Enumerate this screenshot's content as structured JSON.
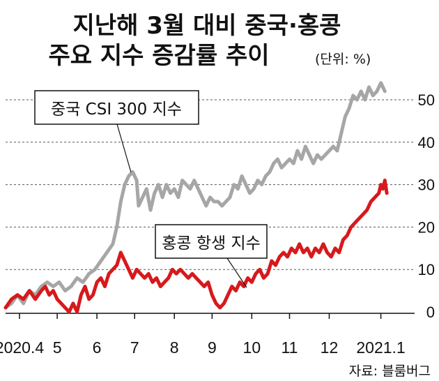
{
  "title_line1": "지난해 3월 대비 중국·홍콩",
  "title_line2": "주요 지수 증감률 추이",
  "unit": "(단위: %)",
  "source": "자료: 블룸버그",
  "colors": {
    "csi": "#a6a6a6",
    "hsi": "#d7191c",
    "grid": "#555555",
    "text": "#111111"
  },
  "chart_data": {
    "type": "line",
    "title": "지난해 3월 대비 중국·홍콩 주요 지수 증감률 추이",
    "ylabel": "(단위: %)",
    "ylim": [
      0,
      55
    ],
    "yticks": [
      0,
      10,
      20,
      30,
      40,
      50
    ],
    "xlim": [
      0,
      10.3
    ],
    "xticks": [
      {
        "x": 0.35,
        "label": "2020.4"
      },
      {
        "x": 1.3,
        "label": "5"
      },
      {
        "x": 2.3,
        "label": "6"
      },
      {
        "x": 3.25,
        "label": "7"
      },
      {
        "x": 4.25,
        "label": "8"
      },
      {
        "x": 5.2,
        "label": "9"
      },
      {
        "x": 6.2,
        "label": "10"
      },
      {
        "x": 7.15,
        "label": "11"
      },
      {
        "x": 8.15,
        "label": "12"
      },
      {
        "x": 9.45,
        "label": "2021.1"
      }
    ],
    "grid": "dashed horizontal",
    "series": [
      {
        "name": "중국 CSI 300 지수",
        "points": [
          [
            0.0,
            1
          ],
          [
            0.15,
            2
          ],
          [
            0.3,
            4
          ],
          [
            0.45,
            2
          ],
          [
            0.6,
            5
          ],
          [
            0.75,
            4
          ],
          [
            0.9,
            6
          ],
          [
            1.05,
            7
          ],
          [
            1.2,
            6
          ],
          [
            1.35,
            7
          ],
          [
            1.5,
            5
          ],
          [
            1.65,
            6
          ],
          [
            1.8,
            8
          ],
          [
            1.95,
            7
          ],
          [
            2.1,
            9
          ],
          [
            2.25,
            10
          ],
          [
            2.4,
            12
          ],
          [
            2.55,
            14
          ],
          [
            2.7,
            16
          ],
          [
            2.8,
            20
          ],
          [
            2.9,
            26
          ],
          [
            3.0,
            30
          ],
          [
            3.1,
            32
          ],
          [
            3.2,
            33
          ],
          [
            3.3,
            31
          ],
          [
            3.35,
            25
          ],
          [
            3.45,
            27
          ],
          [
            3.55,
            29
          ],
          [
            3.65,
            24
          ],
          [
            3.75,
            28
          ],
          [
            3.85,
            30
          ],
          [
            3.95,
            27
          ],
          [
            4.05,
            30
          ],
          [
            4.15,
            28
          ],
          [
            4.25,
            29
          ],
          [
            4.35,
            27
          ],
          [
            4.45,
            31
          ],
          [
            4.55,
            30
          ],
          [
            4.65,
            29
          ],
          [
            4.75,
            31
          ],
          [
            4.85,
            29
          ],
          [
            4.95,
            27
          ],
          [
            5.05,
            25
          ],
          [
            5.15,
            27
          ],
          [
            5.25,
            26
          ],
          [
            5.35,
            26
          ],
          [
            5.45,
            25
          ],
          [
            5.55,
            26
          ],
          [
            5.65,
            27
          ],
          [
            5.75,
            30
          ],
          [
            5.85,
            29
          ],
          [
            5.95,
            32
          ],
          [
            6.05,
            30
          ],
          [
            6.15,
            28
          ],
          [
            6.25,
            29
          ],
          [
            6.35,
            31
          ],
          [
            6.45,
            30
          ],
          [
            6.55,
            32
          ],
          [
            6.65,
            33
          ],
          [
            6.75,
            35
          ],
          [
            6.85,
            36
          ],
          [
            6.95,
            34
          ],
          [
            7.05,
            35
          ],
          [
            7.15,
            36
          ],
          [
            7.25,
            35
          ],
          [
            7.35,
            38
          ],
          [
            7.45,
            36
          ],
          [
            7.55,
            39
          ],
          [
            7.65,
            37
          ],
          [
            7.75,
            35
          ],
          [
            7.85,
            37
          ],
          [
            7.95,
            36
          ],
          [
            8.05,
            37
          ],
          [
            8.15,
            38
          ],
          [
            8.25,
            39
          ],
          [
            8.35,
            38
          ],
          [
            8.45,
            42
          ],
          [
            8.55,
            46
          ],
          [
            8.65,
            48
          ],
          [
            8.75,
            51
          ],
          [
            8.85,
            50
          ],
          [
            8.95,
            52
          ],
          [
            9.05,
            50
          ],
          [
            9.15,
            53
          ],
          [
            9.25,
            51
          ],
          [
            9.35,
            52
          ],
          [
            9.45,
            54
          ],
          [
            9.55,
            52
          ]
        ]
      },
      {
        "name": "홍콩 항생 지수",
        "points": [
          [
            0.0,
            1
          ],
          [
            0.15,
            3
          ],
          [
            0.3,
            4
          ],
          [
            0.45,
            3
          ],
          [
            0.6,
            5
          ],
          [
            0.75,
            3
          ],
          [
            0.9,
            5
          ],
          [
            1.0,
            6
          ],
          [
            1.1,
            4
          ],
          [
            1.2,
            5
          ],
          [
            1.3,
            3
          ],
          [
            1.4,
            2
          ],
          [
            1.5,
            1
          ],
          [
            1.6,
            0
          ],
          [
            1.7,
            2
          ],
          [
            1.8,
            0
          ],
          [
            1.9,
            4
          ],
          [
            2.0,
            6
          ],
          [
            2.1,
            3
          ],
          [
            2.2,
            4
          ],
          [
            2.3,
            7
          ],
          [
            2.4,
            8
          ],
          [
            2.5,
            6
          ],
          [
            2.6,
            9
          ],
          [
            2.7,
            10
          ],
          [
            2.8,
            11
          ],
          [
            2.9,
            14
          ],
          [
            3.0,
            12
          ],
          [
            3.1,
            10
          ],
          [
            3.2,
            8
          ],
          [
            3.3,
            10
          ],
          [
            3.4,
            9
          ],
          [
            3.5,
            8
          ],
          [
            3.6,
            9
          ],
          [
            3.7,
            7
          ],
          [
            3.8,
            8
          ],
          [
            3.9,
            6
          ],
          [
            4.0,
            7
          ],
          [
            4.1,
            8
          ],
          [
            4.2,
            10
          ],
          [
            4.3,
            9
          ],
          [
            4.4,
            10
          ],
          [
            4.5,
            9
          ],
          [
            4.6,
            8
          ],
          [
            4.7,
            9
          ],
          [
            4.8,
            8
          ],
          [
            4.9,
            7
          ],
          [
            5.0,
            6
          ],
          [
            5.1,
            7
          ],
          [
            5.2,
            4
          ],
          [
            5.3,
            2
          ],
          [
            5.4,
            1
          ],
          [
            5.5,
            2
          ],
          [
            5.6,
            4
          ],
          [
            5.7,
            6
          ],
          [
            5.8,
            5
          ],
          [
            5.9,
            7
          ],
          [
            6.0,
            6
          ],
          [
            6.1,
            8
          ],
          [
            6.2,
            7
          ],
          [
            6.3,
            9
          ],
          [
            6.4,
            10
          ],
          [
            6.5,
            8
          ],
          [
            6.6,
            9
          ],
          [
            6.7,
            12
          ],
          [
            6.8,
            11
          ],
          [
            6.9,
            13
          ],
          [
            7.0,
            14
          ],
          [
            7.1,
            13
          ],
          [
            7.2,
            15
          ],
          [
            7.3,
            14
          ],
          [
            7.4,
            16
          ],
          [
            7.5,
            14
          ],
          [
            7.6,
            15
          ],
          [
            7.7,
            13
          ],
          [
            7.8,
            15
          ],
          [
            7.9,
            14
          ],
          [
            8.0,
            16
          ],
          [
            8.1,
            14
          ],
          [
            8.2,
            13
          ],
          [
            8.3,
            15
          ],
          [
            8.4,
            14
          ],
          [
            8.5,
            17
          ],
          [
            8.6,
            18
          ],
          [
            8.7,
            20
          ],
          [
            8.8,
            21
          ],
          [
            8.9,
            22
          ],
          [
            9.0,
            23
          ],
          [
            9.1,
            24
          ],
          [
            9.2,
            26
          ],
          [
            9.3,
            27
          ],
          [
            9.4,
            28
          ],
          [
            9.45,
            30
          ],
          [
            9.5,
            29
          ],
          [
            9.55,
            31
          ],
          [
            9.6,
            28
          ]
        ]
      }
    ],
    "annotations": [
      {
        "text": "중국 CSI 300 지수",
        "series": 0
      },
      {
        "text": "홍콩 항생 지수",
        "series": 1
      }
    ]
  }
}
